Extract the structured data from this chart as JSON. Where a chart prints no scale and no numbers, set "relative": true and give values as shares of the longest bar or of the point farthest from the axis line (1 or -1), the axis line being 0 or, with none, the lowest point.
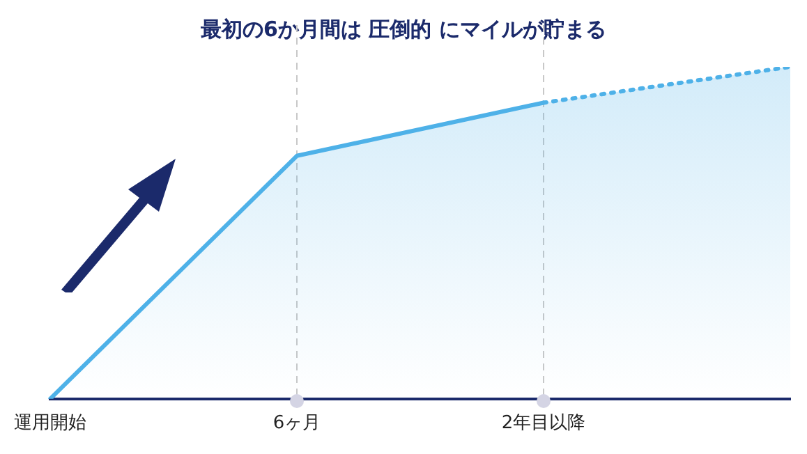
{
  "chart_data": {
    "type": "area",
    "title": "最初の6か月間は 圧倒的 にマイルが貯まる",
    "relative": true,
    "categories": [
      "運用開始",
      "6ヶ月",
      "2年目以降",
      null
    ],
    "series": [
      {
        "type": "area",
        "color": "#4eb1e8",
        "values": [
          0,
          0.732,
          0.892,
          null
        ]
      },
      {
        "type": "area",
        "color": "#4eb1e8",
        "line_style": "dotted",
        "values": [
          null,
          null,
          0.892,
          1
        ]
      }
    ],
    "ref_lines": [
      {
        "axis": "x",
        "value": "6ヶ月",
        "color": "#c8c8c8",
        "line_style": "dashed"
      },
      {
        "axis": "x",
        "value": "2年目以降",
        "color": "#c8c8c8",
        "line_style": "dashed"
      }
    ],
    "grid": false,
    "legend": false,
    "tick_labels": "x"
  }
}
